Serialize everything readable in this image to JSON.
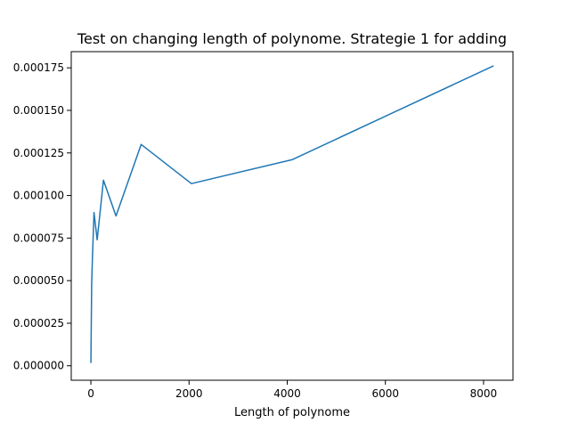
{
  "chart_data": {
    "type": "line",
    "title": "Test on changing length of polynome. Strategie 1 for adding",
    "xlabel": "Length of polynome",
    "ylabel": "",
    "xlim": [
      -400,
      8600
    ],
    "ylim": [
      -8.5e-06,
      0.0001845
    ],
    "x_ticks": [
      0,
      2000,
      4000,
      6000,
      8000
    ],
    "x_tick_labels": [
      "0",
      "2000",
      "4000",
      "6000",
      "8000"
    ],
    "y_ticks": [
      0,
      2.5e-05,
      5e-05,
      7.5e-05,
      0.0001,
      0.000125,
      0.00015,
      0.000175
    ],
    "y_tick_labels": [
      "0.000000",
      "0.000025",
      "0.000050",
      "0.000075",
      "0.000100",
      "0.000125",
      "0.000150",
      "0.000175"
    ],
    "grid": false,
    "series": [
      {
        "color": "#1f77b4",
        "x": [
          1,
          2,
          4,
          8,
          16,
          32,
          64,
          128,
          256,
          512,
          1024,
          2048,
          4096,
          8192
        ],
        "y": [
          2e-06,
          5e-06,
          1.2e-05,
          2.5e-05,
          4.8e-05,
          6.4e-05,
          9e-05,
          7.4e-05,
          0.000109,
          8.8e-05,
          0.00013,
          0.000107,
          0.000121,
          0.000176
        ]
      }
    ]
  }
}
